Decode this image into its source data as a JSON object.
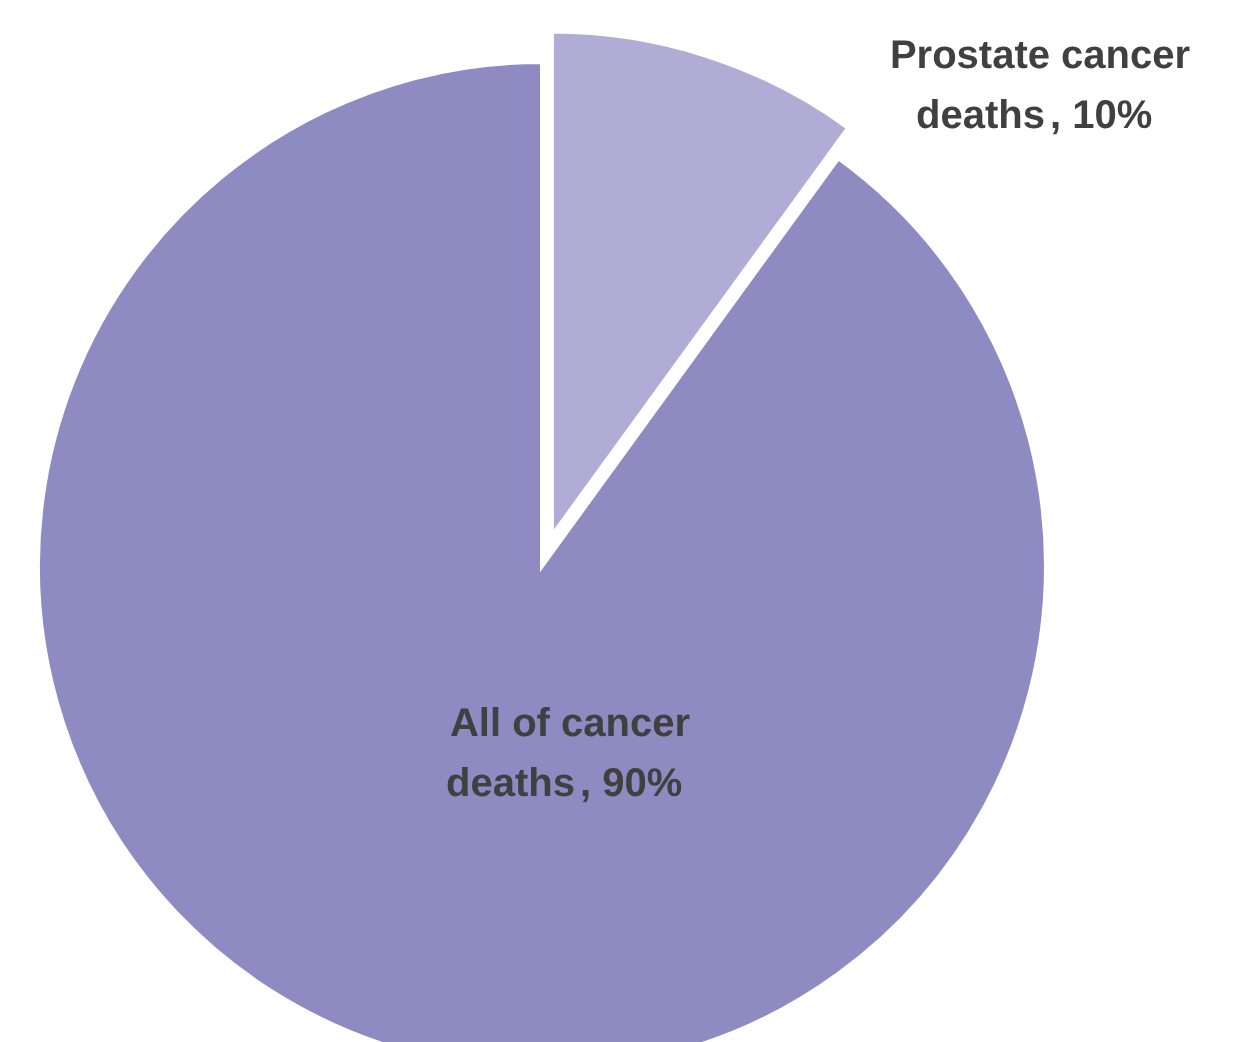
{
  "chart_data": {
    "type": "pie",
    "categories": [
      "Prostate cancer deaths",
      "All of cancer deaths"
    ],
    "values": [
      10,
      90
    ],
    "colors": [
      "#b0acd6",
      "#8e8ac2"
    ],
    "value_labels": [
      ", 10%",
      ", 90%"
    ]
  }
}
